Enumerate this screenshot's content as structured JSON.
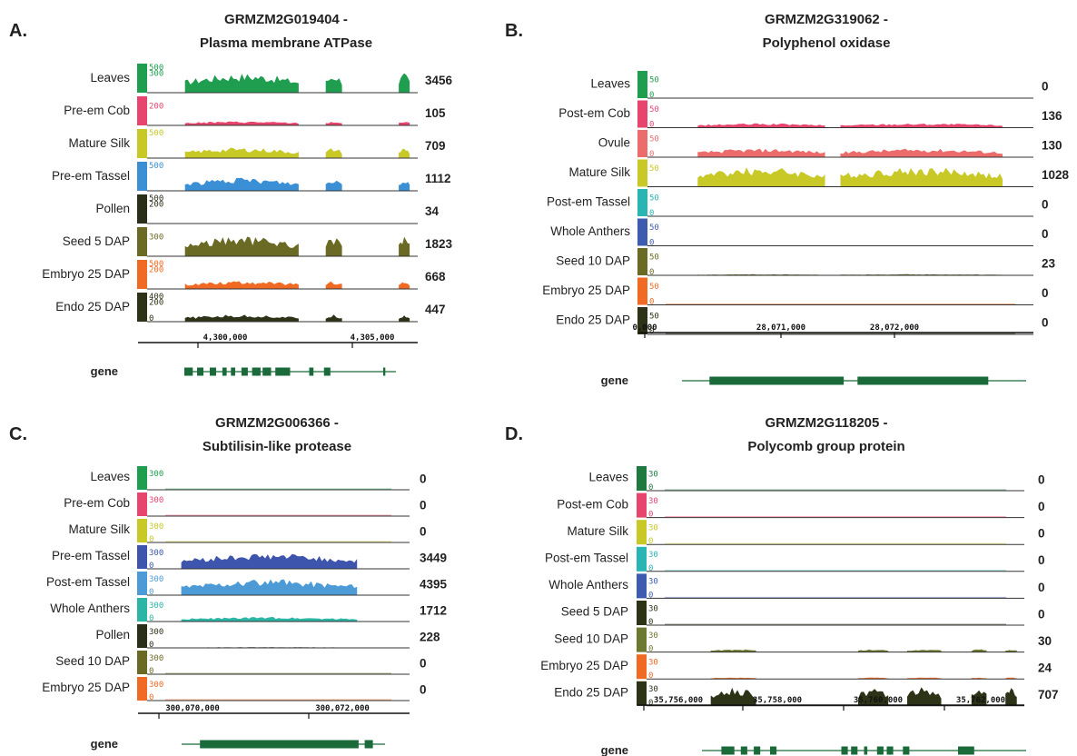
{
  "chart_data": [
    {
      "type": "area",
      "panel_label": "A.",
      "title_line1": "GRMZM2G019404 -",
      "title_line2": "Plasma membrane ATPase",
      "x_ticks": [
        "4,300,000",
        "4,305,000"
      ],
      "gene_label": "gene",
      "gene_exons": [
        [
          0.0,
          0.04
        ],
        [
          0.06,
          0.09
        ],
        [
          0.12,
          0.15
        ],
        [
          0.18,
          0.2
        ],
        [
          0.22,
          0.24
        ],
        [
          0.27,
          0.3
        ],
        [
          0.32,
          0.36
        ],
        [
          0.37,
          0.41
        ],
        [
          0.43,
          0.5
        ],
        [
          0.59,
          0.61
        ],
        [
          0.66,
          0.69
        ],
        [
          0.94,
          0.95
        ]
      ],
      "tracks": [
        {
          "name": "Leaves",
          "scale_top": "500",
          "scale_mid": "300",
          "scale_bottom": "",
          "count": "3456",
          "color": "#1f9e50",
          "amp": 0.85
        },
        {
          "name": "Pre-em Cob",
          "scale_top": "",
          "scale_mid": "200",
          "scale_bottom": "",
          "count": "105",
          "color": "#e8456e",
          "amp": 0.18
        },
        {
          "name": "Mature Silk",
          "scale_top": "500",
          "scale_mid": "",
          "scale_bottom": "",
          "count": "709",
          "color": "#c8c826",
          "amp": 0.45
        },
        {
          "name": "Pre-em Tassel",
          "scale_top": "500",
          "scale_mid": "",
          "scale_bottom": "",
          "count": "1112",
          "color": "#3b8fd4",
          "amp": 0.55
        },
        {
          "name": "Pollen",
          "scale_top": "500",
          "scale_mid": "200",
          "scale_bottom": "",
          "count": "34",
          "color": "#2a3018",
          "amp": 0.02
        },
        {
          "name": "Seed 5 DAP",
          "scale_top": "",
          "scale_mid": "300",
          "scale_bottom": "",
          "count": "1823",
          "color": "#6b6a24",
          "amp": 0.85
        },
        {
          "name": "Embryo 25 DAP",
          "scale_top": "500",
          "scale_mid": "200",
          "scale_bottom": "",
          "count": "668",
          "color": "#f06a23",
          "amp": 0.35
        },
        {
          "name": "Endo 25 DAP",
          "scale_top": "400",
          "scale_mid": "200",
          "scale_bottom": "0",
          "count": "447",
          "color": "#2c3316",
          "amp": 0.3
        }
      ]
    },
    {
      "type": "area",
      "panel_label": "B.",
      "title_line1": "GRMZM2G319062 -",
      "title_line2": "Polyphenol oxidase",
      "x_ticks": [
        "0,000",
        "28,071,000",
        "28,072,000"
      ],
      "gene_label": "gene",
      "gene_exons": [
        [
          0.08,
          0.47
        ],
        [
          0.51,
          0.89
        ]
      ],
      "tracks": [
        {
          "name": "Leaves",
          "scale_top": "",
          "scale_mid": "50",
          "scale_bottom": "0",
          "count": "0",
          "color": "#1f9e50",
          "amp": 0.02
        },
        {
          "name": "Post-em Cob",
          "scale_top": "",
          "scale_mid": "50",
          "scale_bottom": "0",
          "count": "136",
          "color": "#e8456e",
          "amp": 0.2
        },
        {
          "name": "Ovule",
          "scale_top": "",
          "scale_mid": "50",
          "scale_bottom": "0",
          "count": "130",
          "color": "#ec6c6c",
          "amp": 0.4
        },
        {
          "name": "Mature Silk",
          "scale_top": "",
          "scale_mid": "50",
          "scale_bottom": "",
          "count": "1028",
          "color": "#c8c826",
          "amp": 0.92
        },
        {
          "name": "Post-em Tassel",
          "scale_top": "",
          "scale_mid": "50",
          "scale_bottom": "0",
          "count": "0",
          "color": "#2ab5b5",
          "amp": 0.02
        },
        {
          "name": "Whole Anthers",
          "scale_top": "",
          "scale_mid": "50",
          "scale_bottom": "0",
          "count": "0",
          "color": "#3d5cb0",
          "amp": 0.02
        },
        {
          "name": "Seed 10 DAP",
          "scale_top": "",
          "scale_mid": "50",
          "scale_bottom": "0",
          "count": "23",
          "color": "#6b6a24",
          "amp": 0.05
        },
        {
          "name": "Embryo 25 DAP",
          "scale_top": "",
          "scale_mid": "50",
          "scale_bottom": "0",
          "count": "0",
          "color": "#f06a23",
          "amp": 0.0
        },
        {
          "name": "Endo 25 DAP",
          "scale_top": "",
          "scale_mid": "50",
          "scale_bottom": "0",
          "count": "0",
          "color": "#2c3316",
          "amp": 0.0
        }
      ]
    },
    {
      "type": "area",
      "panel_label": "C.",
      "title_line1": "GRMZM2G006366 -",
      "title_line2": "Subtilisin-like protease",
      "x_ticks": [
        "300,070,000",
        "300,072,000"
      ],
      "gene_label": "gene",
      "gene_exons": [
        [
          0.09,
          0.87
        ],
        [
          0.9,
          0.94
        ]
      ],
      "tracks": [
        {
          "name": "Leaves",
          "scale_top": "",
          "scale_mid": "300",
          "scale_bottom": "",
          "count": "0",
          "color": "#1f9e50",
          "amp": 0.0
        },
        {
          "name": "Pre-em Cob",
          "scale_top": "",
          "scale_mid": "300",
          "scale_bottom": "",
          "count": "0",
          "color": "#e8456e",
          "amp": 0.0
        },
        {
          "name": "Mature Silk",
          "scale_top": "",
          "scale_mid": "300",
          "scale_bottom": "0",
          "count": "0",
          "color": "#c8c826",
          "amp": 0.0
        },
        {
          "name": "Pre-em Tassel",
          "scale_top": "",
          "scale_mid": "300",
          "scale_bottom": "0",
          "count": "3449",
          "color": "#3e55ad",
          "amp": 0.85
        },
        {
          "name": "Post-em Tassel",
          "scale_top": "",
          "scale_mid": "300",
          "scale_bottom": "0",
          "count": "4395",
          "color": "#4d9bd6",
          "amp": 0.88
        },
        {
          "name": "Whole Anthers",
          "scale_top": "",
          "scale_mid": "300",
          "scale_bottom": "0",
          "count": "1712",
          "color": "#2ab5a5",
          "amp": 0.25
        },
        {
          "name": "Pollen",
          "scale_top": "",
          "scale_mid": "300",
          "scale_bottom": "0",
          "count": "228",
          "color": "#2a3018",
          "amp": 0.04
        },
        {
          "name": "Seed 10 DAP",
          "scale_top": "",
          "scale_mid": "300",
          "scale_bottom": "0",
          "count": "0",
          "color": "#6b6a24",
          "amp": 0.0
        },
        {
          "name": "Embryo 25 DAP",
          "scale_top": "",
          "scale_mid": "300",
          "scale_bottom": "0",
          "count": "0",
          "color": "#f06a23",
          "amp": 0.0
        }
      ]
    },
    {
      "type": "area",
      "panel_label": "D.",
      "title_line1": "GRMZM2G118205 -",
      "title_line2": "Polycomb group protein",
      "x_ticks": [
        "35,756,000",
        "35,758,000",
        "35,760,000",
        "35,762,000"
      ],
      "gene_label": "gene",
      "gene_exons": [
        [
          0.06,
          0.1
        ],
        [
          0.12,
          0.14
        ],
        [
          0.16,
          0.18
        ],
        [
          0.21,
          0.23
        ],
        [
          0.43,
          0.45
        ],
        [
          0.46,
          0.48
        ],
        [
          0.5,
          0.51
        ],
        [
          0.54,
          0.56
        ],
        [
          0.57,
          0.59
        ],
        [
          0.62,
          0.64
        ],
        [
          0.79,
          0.84
        ]
      ],
      "tracks": [
        {
          "name": "Leaves",
          "scale_top": "",
          "scale_mid": "30",
          "scale_bottom": "0",
          "count": "0",
          "color": "#1f7a40",
          "amp": 0.0
        },
        {
          "name": "Post-em Cob",
          "scale_top": "",
          "scale_mid": "30",
          "scale_bottom": "0",
          "count": "0",
          "color": "#e8456e",
          "amp": 0.0
        },
        {
          "name": "Mature Silk",
          "scale_top": "",
          "scale_mid": "30",
          "scale_bottom": "0",
          "count": "0",
          "color": "#c8c826",
          "amp": 0.0
        },
        {
          "name": "Post-em Tassel",
          "scale_top": "",
          "scale_mid": "30",
          "scale_bottom": "0",
          "count": "0",
          "color": "#2ab5b5",
          "amp": 0.0
        },
        {
          "name": "Whole Anthers",
          "scale_top": "",
          "scale_mid": "30",
          "scale_bottom": "0",
          "count": "0",
          "color": "#3d5cb0",
          "amp": 0.0
        },
        {
          "name": "Seed 5 DAP",
          "scale_top": "",
          "scale_mid": "30",
          "scale_bottom": "0",
          "count": "0",
          "color": "#2c3316",
          "amp": 0.0
        },
        {
          "name": "Seed 10 DAP",
          "scale_top": "",
          "scale_mid": "30",
          "scale_bottom": "0",
          "count": "30",
          "color": "#6b7a30",
          "amp": 0.15
        },
        {
          "name": "Embryo 25 DAP",
          "scale_top": "",
          "scale_mid": "30",
          "scale_bottom": "0",
          "count": "24",
          "color": "#f06a23",
          "amp": 0.08
        },
        {
          "name": "Endo 25 DAP",
          "scale_top": "",
          "scale_mid": "30",
          "scale_bottom": "0",
          "count": "707",
          "color": "#2c3316",
          "amp": 1.0
        }
      ]
    }
  ],
  "colors": {
    "gene_model": "#1b6a3a",
    "text": "#222222",
    "axis": "#111111"
  }
}
